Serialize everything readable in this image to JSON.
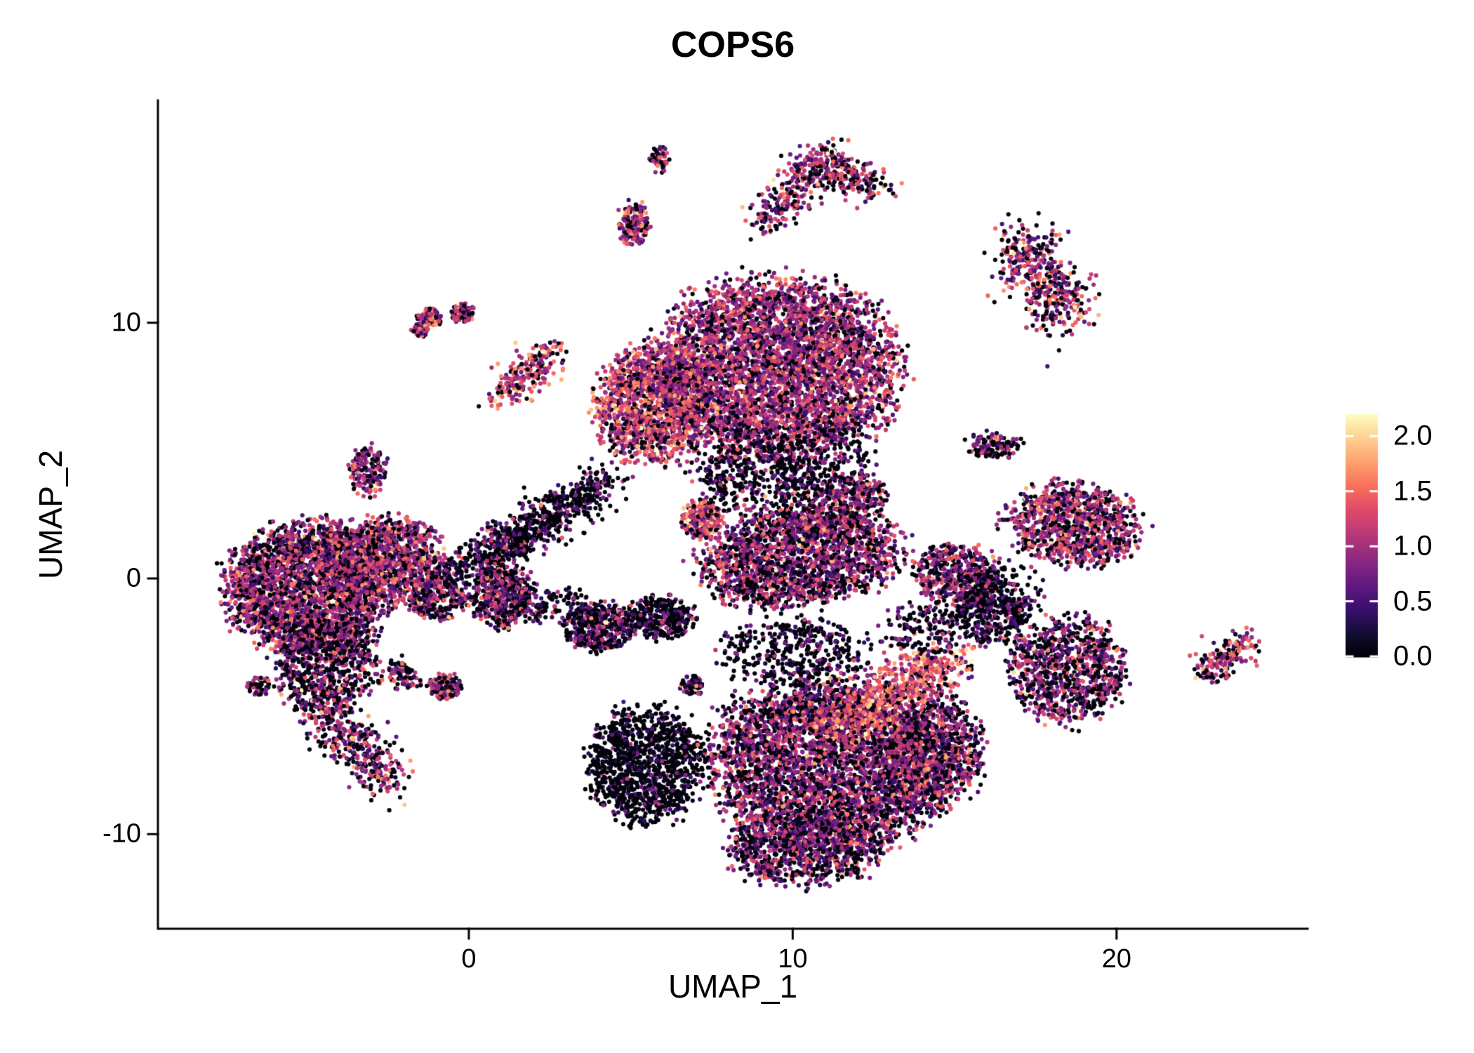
{
  "figure": {
    "title": "COPS6",
    "x_label": "UMAP_1",
    "y_label": "UMAP_2"
  },
  "chart_data": {
    "type": "scatter",
    "subtype": "umap-feature-plot",
    "title": "COPS6",
    "xlabel": "UMAP_1",
    "ylabel": "UMAP_2",
    "x_range": [
      -9.6,
      25.9
    ],
    "y_range": [
      -13.7,
      18.7
    ],
    "x_ticks": [
      {
        "value": 0,
        "label": "0"
      },
      {
        "value": 10,
        "label": "10"
      },
      {
        "value": 20,
        "label": "20"
      }
    ],
    "y_ticks": [
      {
        "value": -10,
        "label": "-10"
      },
      {
        "value": 0,
        "label": "0"
      },
      {
        "value": 10,
        "label": "10"
      }
    ],
    "colorbar": {
      "vmin": 0.0,
      "vmax": 2.2,
      "ticks": [
        {
          "value": 2.0,
          "label": "2.0"
        },
        {
          "value": 1.5,
          "label": "1.5"
        },
        {
          "value": 1.0,
          "label": "1.0"
        },
        {
          "value": 0.5,
          "label": "0.5"
        },
        {
          "value": 0.0,
          "label": "0.0"
        }
      ]
    },
    "colormap": {
      "name": "magma",
      "stops": [
        [
          0.0,
          0,
          0,
          4
        ],
        [
          0.1,
          20,
          14,
          54
        ],
        [
          0.2,
          59,
          15,
          112
        ],
        [
          0.3,
          100,
          26,
          128
        ],
        [
          0.4,
          140,
          41,
          129
        ],
        [
          0.5,
          183,
          55,
          121
        ],
        [
          0.6,
          222,
          73,
          104
        ],
        [
          0.7,
          247,
          111,
          92
        ],
        [
          0.8,
          254,
          159,
          109
        ],
        [
          0.9,
          254,
          207,
          145
        ],
        [
          1.0,
          252,
          253,
          191
        ]
      ]
    },
    "point_radius_px": 3.1,
    "seed": 7,
    "clusters": [
      {
        "shape": "blob",
        "x": -5.0,
        "y": -0.4,
        "rx": 2.4,
        "ry": 2.5,
        "n": 2600,
        "zero": 0.28,
        "mean": 0.95,
        "sd": 0.4
      },
      {
        "shape": "blob",
        "x": -2.6,
        "y": 0.7,
        "rx": 1.7,
        "ry": 1.6,
        "n": 1100,
        "zero": 0.25,
        "mean": 1.0,
        "sd": 0.4
      },
      {
        "shape": "blob",
        "x": -4.4,
        "y": -3.4,
        "rx": 1.5,
        "ry": 1.8,
        "n": 700,
        "zero": 0.42,
        "mean": 0.8,
        "sd": 0.45
      },
      {
        "shape": "streak",
        "x1": -4.8,
        "y1": -5.0,
        "x2": -2.4,
        "y2": -7.9,
        "w": 0.45,
        "n": 380,
        "zero": 0.35,
        "mean": 0.9,
        "sd": 0.5
      },
      {
        "shape": "blob",
        "x": -1.0,
        "y": -0.8,
        "rx": 0.9,
        "ry": 0.8,
        "n": 260,
        "zero": 0.3,
        "mean": 0.95,
        "sd": 0.4
      },
      {
        "shape": "streak",
        "x1": -0.9,
        "y1": 0.1,
        "x2": 1.8,
        "y2": 1.6,
        "w": 0.35,
        "n": 300,
        "zero": 0.5,
        "mean": 0.6,
        "sd": 0.4
      },
      {
        "shape": "blob",
        "x": 1.0,
        "y": -0.7,
        "rx": 1.0,
        "ry": 1.2,
        "n": 520,
        "zero": 0.35,
        "mean": 0.85,
        "sd": 0.4
      },
      {
        "shape": "streak",
        "x1": 0.8,
        "y1": 1.2,
        "x2": 4.3,
        "y2": 3.8,
        "w": 0.4,
        "n": 520,
        "zero": 0.55,
        "mean": 0.55,
        "sd": 0.4
      },
      {
        "shape": "blob",
        "x": 9.5,
        "y": 8.2,
        "rx": 3.5,
        "ry": 3.4,
        "rot": -15,
        "n": 4200,
        "zero": 0.2,
        "mean": 1.0,
        "sd": 0.38
      },
      {
        "shape": "blob",
        "x": 5.7,
        "y": 6.8,
        "rx": 1.7,
        "ry": 2.2,
        "n": 1400,
        "zero": 0.15,
        "mean": 1.15,
        "sd": 0.42
      },
      {
        "shape": "blob",
        "x": 9.0,
        "y": 4.0,
        "rx": 2.0,
        "ry": 1.6,
        "n": 500,
        "zero": 0.55,
        "mean": 0.6,
        "sd": 0.45
      },
      {
        "shape": "blob",
        "x": 7.2,
        "y": 2.3,
        "rx": 0.6,
        "ry": 0.7,
        "n": 240,
        "zero": 0.2,
        "mean": 1.25,
        "sd": 0.35
      },
      {
        "shape": "blob",
        "x": 10.2,
        "y": 0.8,
        "rx": 3.0,
        "ry": 1.8,
        "rot": 10,
        "n": 1900,
        "zero": 0.32,
        "mean": 0.9,
        "sd": 0.4
      },
      {
        "shape": "blob",
        "x": 11.6,
        "y": 3.0,
        "rx": 1.3,
        "ry": 0.9,
        "rot": 30,
        "n": 380,
        "zero": 0.3,
        "mean": 0.95,
        "sd": 0.4
      },
      {
        "shape": "blob",
        "x": 11.2,
        "y": -7.2,
        "rx": 3.6,
        "ry": 3.2,
        "rot": -10,
        "n": 3900,
        "zero": 0.32,
        "mean": 0.85,
        "sd": 0.4
      },
      {
        "shape": "blob",
        "x": 5.5,
        "y": -7.3,
        "rx": 1.7,
        "ry": 2.2,
        "n": 1100,
        "zero": 0.72,
        "mean": 0.35,
        "sd": 0.35
      },
      {
        "shape": "streak",
        "x1": 11.3,
        "y1": -5.9,
        "x2": 14.8,
        "y2": -3.1,
        "w": 0.55,
        "n": 750,
        "zero": 0.12,
        "mean": 1.35,
        "sd": 0.35
      },
      {
        "shape": "blob",
        "x": 10.3,
        "y": -10.6,
        "rx": 2.3,
        "ry": 1.4,
        "n": 900,
        "zero": 0.35,
        "mean": 0.8,
        "sd": 0.4
      },
      {
        "shape": "blob",
        "x": 10.0,
        "y": -2.9,
        "rx": 2.2,
        "ry": 1.3,
        "n": 380,
        "zero": 0.6,
        "mean": 0.5,
        "sd": 0.4
      },
      {
        "shape": "blob",
        "x": 14.4,
        "y": -6.8,
        "rx": 1.4,
        "ry": 2.0,
        "n": 800,
        "zero": 0.3,
        "mean": 0.9,
        "sd": 0.4
      },
      {
        "shape": "blob",
        "x": 18.7,
        "y": 2.1,
        "rx": 2.0,
        "ry": 1.5,
        "rot": -10,
        "n": 1000,
        "zero": 0.27,
        "mean": 1.0,
        "sd": 0.4
      },
      {
        "shape": "blob",
        "x": 18.5,
        "y": -3.6,
        "rx": 1.7,
        "ry": 2.0,
        "n": 900,
        "zero": 0.38,
        "mean": 0.85,
        "sd": 0.42
      },
      {
        "shape": "blob",
        "x": 16.1,
        "y": -1.4,
        "rx": 1.1,
        "ry": 1.1,
        "n": 330,
        "zero": 0.5,
        "mean": 0.6,
        "sd": 0.4
      },
      {
        "shape": "blob",
        "x": 15.1,
        "y": 0.2,
        "rx": 1.3,
        "ry": 1.1,
        "n": 450,
        "zero": 0.3,
        "mean": 0.9,
        "sd": 0.4
      },
      {
        "shape": "streak",
        "x1": 16.9,
        "y1": 13.2,
        "x2": 18.5,
        "y2": 10.2,
        "w": 0.55,
        "n": 460,
        "zero": 0.3,
        "mean": 0.95,
        "sd": 0.45
      },
      {
        "shape": "streak",
        "x1": 9.2,
        "y1": 13.9,
        "x2": 10.8,
        "y2": 16.4,
        "w": 0.4,
        "n": 240,
        "zero": 0.3,
        "mean": 1.0,
        "sd": 0.45
      },
      {
        "shape": "streak",
        "x1": 10.8,
        "y1": 16.4,
        "x2": 12.5,
        "y2": 15.2,
        "w": 0.4,
        "n": 240,
        "zero": 0.3,
        "mean": 1.0,
        "sd": 0.45
      },
      {
        "shape": "blob",
        "x": 5.1,
        "y": 13.9,
        "rx": 0.5,
        "ry": 0.8,
        "n": 150,
        "zero": 0.25,
        "mean": 1.05,
        "sd": 0.4
      },
      {
        "shape": "blob",
        "x": 5.9,
        "y": 16.4,
        "rx": 0.3,
        "ry": 0.5,
        "n": 55,
        "zero": 0.4,
        "mean": 0.9,
        "sd": 0.45
      },
      {
        "shape": "blob",
        "x": -1.2,
        "y": 10.2,
        "rx": 0.35,
        "ry": 0.35,
        "n": 80,
        "zero": 0.3,
        "mean": 1.0,
        "sd": 0.4
      },
      {
        "shape": "blob",
        "x": -0.2,
        "y": 10.4,
        "rx": 0.35,
        "ry": 0.35,
        "n": 80,
        "zero": 0.3,
        "mean": 1.0,
        "sd": 0.4
      },
      {
        "shape": "blob",
        "x": -1.5,
        "y": 9.7,
        "rx": 0.25,
        "ry": 0.25,
        "n": 40,
        "zero": 0.35,
        "mean": 0.9,
        "sd": 0.4
      },
      {
        "shape": "streak",
        "x1": 1.0,
        "y1": 7.2,
        "x2": 2.6,
        "y2": 8.9,
        "w": 0.35,
        "n": 220,
        "zero": 0.2,
        "mean": 1.15,
        "sd": 0.45
      },
      {
        "shape": "blob",
        "x": -3.1,
        "y": 4.2,
        "rx": 0.55,
        "ry": 0.95,
        "n": 160,
        "zero": 0.35,
        "mean": 0.9,
        "sd": 0.4
      },
      {
        "shape": "blob",
        "x": -6.5,
        "y": -4.2,
        "rx": 0.35,
        "ry": 0.35,
        "n": 60,
        "zero": 0.4,
        "mean": 0.9,
        "sd": 0.5
      },
      {
        "shape": "streak",
        "x1": -2.4,
        "y1": -3.4,
        "x2": -1.8,
        "y2": -4.0,
        "w": 0.25,
        "n": 90,
        "zero": 0.35,
        "mean": 0.9,
        "sd": 0.4
      },
      {
        "shape": "blob",
        "x": -0.7,
        "y": -4.2,
        "rx": 0.5,
        "ry": 0.45,
        "n": 140,
        "zero": 0.3,
        "mean": 1.0,
        "sd": 0.45
      },
      {
        "shape": "blob",
        "x": 4.1,
        "y": -1.9,
        "rx": 1.0,
        "ry": 1.0,
        "n": 360,
        "zero": 0.45,
        "mean": 0.7,
        "sd": 0.45
      },
      {
        "shape": "blob",
        "x": 5.9,
        "y": -1.5,
        "rx": 1.0,
        "ry": 0.8,
        "n": 320,
        "zero": 0.55,
        "mean": 0.6,
        "sd": 0.45
      },
      {
        "shape": "blob",
        "x": 6.9,
        "y": -4.2,
        "rx": 0.35,
        "ry": 0.4,
        "n": 70,
        "zero": 0.45,
        "mean": 0.8,
        "sd": 0.45
      },
      {
        "shape": "blob",
        "x": 16.2,
        "y": 5.2,
        "rx": 0.8,
        "ry": 0.55,
        "n": 120,
        "zero": 0.45,
        "mean": 0.8,
        "sd": 0.4
      },
      {
        "shape": "streak",
        "x1": 22.7,
        "y1": -3.6,
        "x2": 24.1,
        "y2": -2.5,
        "w": 0.3,
        "n": 160,
        "zero": 0.25,
        "mean": 1.05,
        "sd": 0.45
      },
      {
        "shape": "blob",
        "x": 11.0,
        "y": 4.5,
        "rx": 1.5,
        "ry": 1.5,
        "n": 200,
        "zero": 0.6,
        "mean": 0.5,
        "sd": 0.4
      },
      {
        "shape": "blob",
        "x": 16.5,
        "y": -0.5,
        "rx": 1.2,
        "ry": 1.2,
        "n": 150,
        "zero": 0.6,
        "mean": 0.5,
        "sd": 0.4
      },
      {
        "shape": "blob",
        "x": 14.0,
        "y": -2.0,
        "rx": 1.2,
        "ry": 1.0,
        "n": 150,
        "zero": 0.65,
        "mean": 0.45,
        "sd": 0.4
      },
      {
        "shape": "blob",
        "x": 2.8,
        "y": -1.2,
        "rx": 1.2,
        "ry": 0.8,
        "n": 120,
        "zero": 0.5,
        "mean": 0.6,
        "sd": 0.4
      }
    ]
  }
}
